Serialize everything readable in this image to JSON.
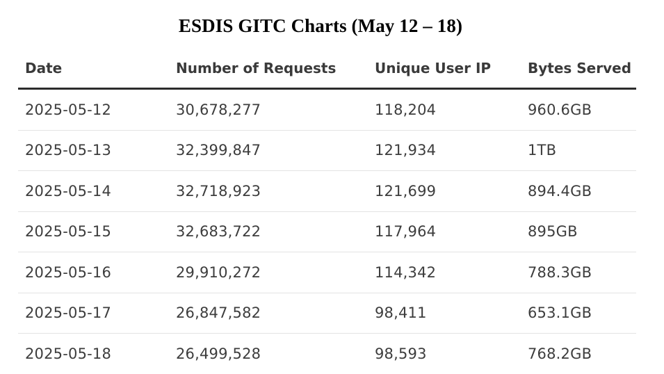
{
  "title": "ESDIS GITC Charts (May 12 – 18)",
  "columns": {
    "date": "Date",
    "requests": "Number of Requests",
    "unique_ip": "Unique User IP",
    "bytes": "Bytes Served"
  },
  "rows": [
    {
      "date": "2025-05-12",
      "requests": "30,678,277",
      "unique_ip": "118,204",
      "bytes": "960.6GB"
    },
    {
      "date": "2025-05-13",
      "requests": "32,399,847",
      "unique_ip": "121,934",
      "bytes": "1TB"
    },
    {
      "date": "2025-05-14",
      "requests": "32,718,923",
      "unique_ip": "121,699",
      "bytes": "894.4GB"
    },
    {
      "date": "2025-05-15",
      "requests": "32,683,722",
      "unique_ip": "117,964",
      "bytes": "895GB"
    },
    {
      "date": "2025-05-16",
      "requests": "29,910,272",
      "unique_ip": "114,342",
      "bytes": "788.3GB"
    },
    {
      "date": "2025-05-17",
      "requests": "26,847,582",
      "unique_ip": "98,411",
      "bytes": "653.1GB"
    },
    {
      "date": "2025-05-18",
      "requests": "26,499,528",
      "unique_ip": "98,593",
      "bytes": "768.2GB"
    }
  ]
}
